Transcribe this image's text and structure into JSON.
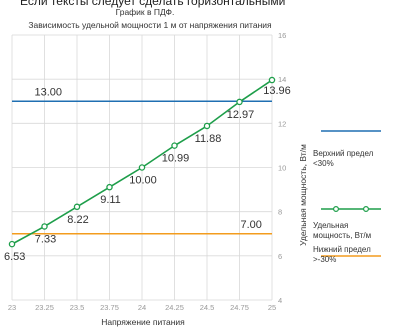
{
  "header_cut_text": "Если тексты следует сделать горизонтальными",
  "subtitle": "График в ПДФ.",
  "chart_data": {
    "type": "line",
    "title": "Зависимость удельной мощности 1 м от напряжения питания",
    "xlabel": "Напряжение питания",
    "ylabel": "Удельная мощность, Вт/м",
    "xlim": [
      23,
      25
    ],
    "ylim": [
      4,
      16
    ],
    "x_ticks": [
      "23",
      "23.25",
      "23.5",
      "23.75",
      "24",
      "24.25",
      "24.5",
      "24.75",
      "25"
    ],
    "y_ticks": [
      "4",
      "6",
      "8",
      "10",
      "12",
      "14",
      "16"
    ],
    "y_axis_side": "right",
    "grid": true,
    "legend_position": "right",
    "series": [
      {
        "name": "Удельная мощность, Вт/м",
        "color": "#1e9e4a",
        "marker": "circle",
        "x": [
          23,
          23.25,
          23.5,
          23.75,
          24,
          24.25,
          24.5,
          24.75,
          25
        ],
        "y": [
          6.53,
          7.33,
          8.22,
          9.11,
          10.0,
          10.99,
          11.88,
          12.97,
          13.96
        ],
        "labels": [
          "6.53",
          "7.33",
          "8.22",
          "9.11",
          "10.00",
          "10.99",
          "11.88",
          "12.97",
          "13.96"
        ]
      },
      {
        "name": "Верхний предел <30%",
        "color": "#1f6fb2",
        "x": [
          23,
          25
        ],
        "y": [
          13.0,
          13.0
        ],
        "labels": [
          "13.00"
        ]
      },
      {
        "name": "Нижний предел >-30%",
        "color": "#f39c1e",
        "x": [
          23,
          25
        ],
        "y": [
          7.0,
          7.0
        ],
        "labels": [
          "7.00"
        ]
      }
    ]
  },
  "legend": [
    {
      "line1": "Верхний предел",
      "line2": "<30%",
      "color": "#1f6fb2",
      "marker": "none"
    },
    {
      "line1": "Удельная",
      "line2": "мощность, Вт/м",
      "color": "#1e9e4a",
      "marker": "circle"
    },
    {
      "line1": "Нижний предел",
      "line2": ">-30%",
      "color": "#f39c1e",
      "marker": "none"
    }
  ]
}
